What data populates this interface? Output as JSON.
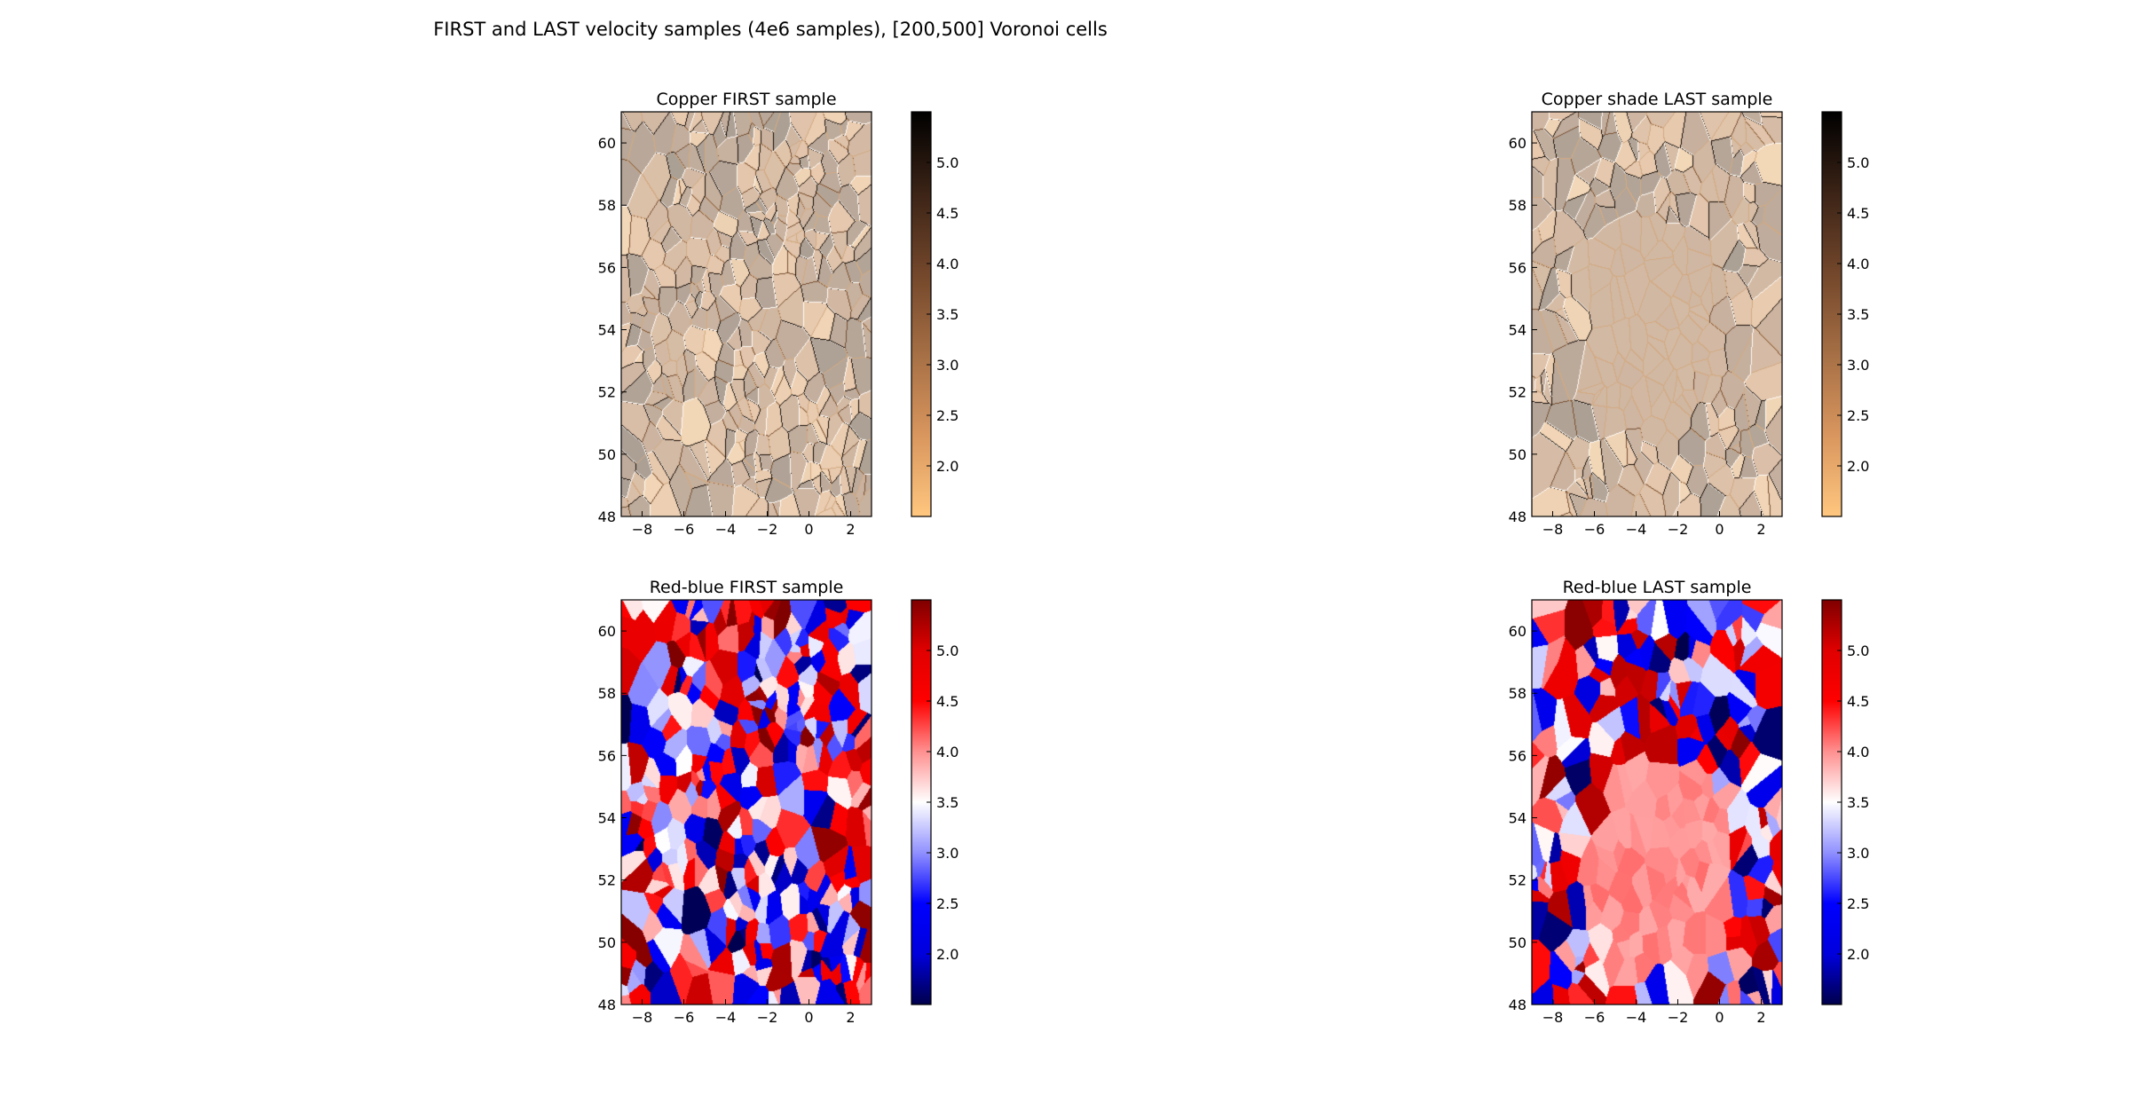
{
  "figure": {
    "title": "FIRST and LAST velocity samples (4e6 samples), [200,500] Voronoi cells"
  },
  "colors": {
    "copper": [
      "#ffc77f",
      "#d9965e",
      "#a66f45",
      "#73472b",
      "#3b2316",
      "#000000"
    ],
    "seismic": [
      "#7f0000",
      "#e00000",
      "#ff0000",
      "#ff9090",
      "#ffffff",
      "#9090ff",
      "#0000ff",
      "#0000dd",
      "#00004c"
    ]
  },
  "chart_data": [
    {
      "type": "heatmap",
      "title": "Copper FIRST sample",
      "colormap": "copper_r (shaded)",
      "xlim": [
        -9,
        3
      ],
      "ylim": [
        48,
        61
      ],
      "xticks": [
        "−8",
        "−6",
        "−4",
        "−2",
        "0",
        "2"
      ],
      "yticks": [
        "48",
        "50",
        "52",
        "54",
        "56",
        "58",
        "60"
      ],
      "colorbar": {
        "range": [
          1.5,
          5.5
        ],
        "ticks": [
          "2.0",
          "2.5",
          "3.0",
          "3.5",
          "4.0",
          "4.5",
          "5.0"
        ]
      },
      "cells": 360,
      "seed": 7,
      "blob": null
    },
    {
      "type": "heatmap",
      "title": "Copper shade LAST sample",
      "colormap": "copper_r (shaded)",
      "xlim": [
        -9,
        3
      ],
      "ylim": [
        48,
        61
      ],
      "xticks": [
        "−8",
        "−6",
        "−4",
        "−2",
        "0",
        "2"
      ],
      "yticks": [
        "48",
        "50",
        "52",
        "54",
        "56",
        "58",
        "60"
      ],
      "colorbar": {
        "range": [
          1.5,
          5.5
        ],
        "ticks": [
          "2.0",
          "2.5",
          "3.0",
          "3.5",
          "4.0",
          "4.5",
          "5.0"
        ]
      },
      "cells": 260,
      "seed": 19,
      "blob": {
        "x": -3.5,
        "y": 54,
        "r": 3.6,
        "value": 3.6
      }
    },
    {
      "type": "heatmap",
      "title": "Red-blue FIRST sample",
      "colormap": "seismic_r",
      "xlim": [
        -9,
        3
      ],
      "ylim": [
        48,
        61
      ],
      "xticks": [
        "−8",
        "−6",
        "−4",
        "−2",
        "0",
        "2"
      ],
      "yticks": [
        "48",
        "50",
        "52",
        "54",
        "56",
        "58",
        "60"
      ],
      "colorbar": {
        "range": [
          1.5,
          5.5
        ],
        "ticks": [
          "2.0",
          "2.5",
          "3.0",
          "3.5",
          "4.0",
          "4.5",
          "5.0"
        ]
      },
      "cells": 360,
      "seed": 7,
      "blob": null
    },
    {
      "type": "heatmap",
      "title": "Red-blue LAST sample",
      "colormap": "seismic_r",
      "xlim": [
        -9,
        3
      ],
      "ylim": [
        48,
        61
      ],
      "xticks": [
        "−8",
        "−6",
        "−4",
        "−2",
        "0",
        "2"
      ],
      "yticks": [
        "48",
        "50",
        "52",
        "54",
        "56",
        "58",
        "60"
      ],
      "colorbar": {
        "range": [
          1.5,
          5.5
        ],
        "ticks": [
          "2.0",
          "2.5",
          "3.0",
          "3.5",
          "4.0",
          "4.5",
          "5.0"
        ]
      },
      "cells": 260,
      "seed": 19,
      "blob": {
        "x": -2.8,
        "y": 52.5,
        "r": 3.6,
        "value": 4.0
      }
    }
  ]
}
